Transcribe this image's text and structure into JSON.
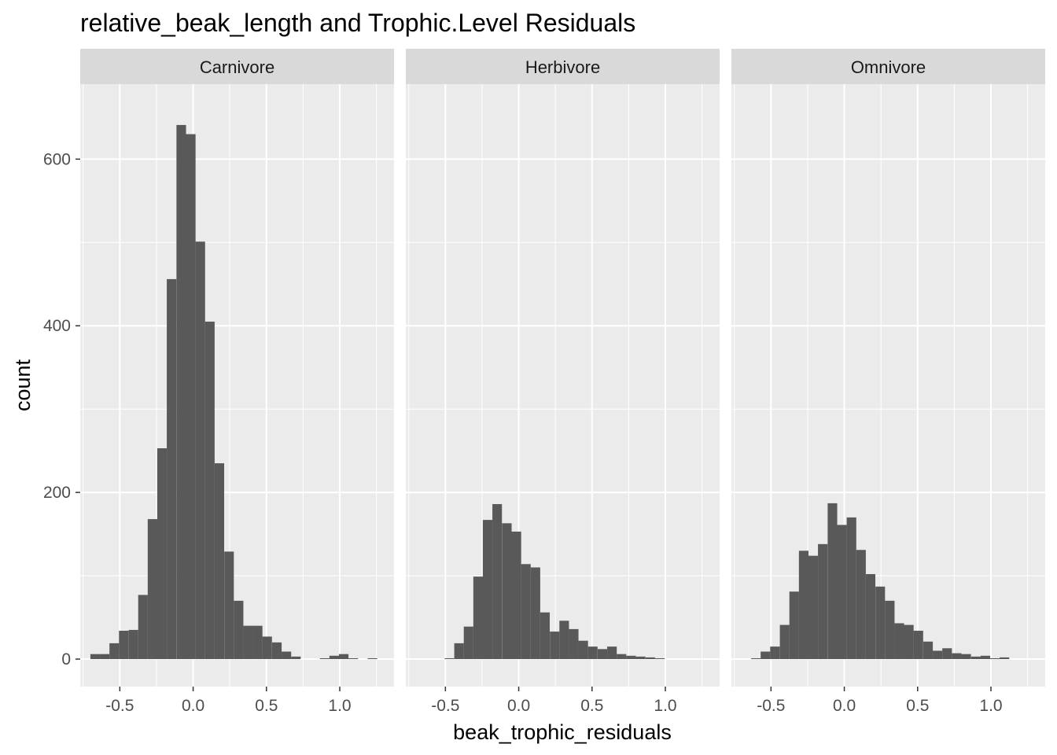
{
  "chart_data": {
    "type": "bar",
    "subtype": "faceted-histogram",
    "title": "relative_beak_length and Trophic.Level Residuals",
    "xlabel": "beak_trophic_residuals",
    "ylabel": "count",
    "xlim": [
      -0.77,
      1.37
    ],
    "ylim": [
      -33,
      690
    ],
    "x_ticks": [
      -0.5,
      0.0,
      0.5,
      1.0
    ],
    "x_tick_labels": [
      "-0.5",
      "0.0",
      "0.5",
      "1.0"
    ],
    "y_ticks": [
      0,
      200,
      400,
      600
    ],
    "y_tick_labels": [
      "0",
      "200",
      "400",
      "600"
    ],
    "bin_width": 0.0652,
    "bar_color": "#595959",
    "panel_background": "#ebebeb",
    "strip_background": "#d9d9d9",
    "grid": true,
    "legend": "none",
    "facets": [
      {
        "label": "Carnivore",
        "bins": [
          {
            "x": -0.668,
            "count": 6
          },
          {
            "x": -0.603,
            "count": 6
          },
          {
            "x": -0.538,
            "count": 19
          },
          {
            "x": -0.473,
            "count": 34
          },
          {
            "x": -0.407,
            "count": 35
          },
          {
            "x": -0.342,
            "count": 77
          },
          {
            "x": -0.277,
            "count": 168
          },
          {
            "x": -0.212,
            "count": 253
          },
          {
            "x": -0.147,
            "count": 456
          },
          {
            "x": -0.081,
            "count": 641
          },
          {
            "x": -0.016,
            "count": 630
          },
          {
            "x": 0.049,
            "count": 501
          },
          {
            "x": 0.114,
            "count": 405
          },
          {
            "x": 0.179,
            "count": 235
          },
          {
            "x": 0.245,
            "count": 129
          },
          {
            "x": 0.31,
            "count": 70
          },
          {
            "x": 0.375,
            "count": 40
          },
          {
            "x": 0.44,
            "count": 40
          },
          {
            "x": 0.505,
            "count": 27
          },
          {
            "x": 0.571,
            "count": 20
          },
          {
            "x": 0.636,
            "count": 9
          },
          {
            "x": 0.701,
            "count": 3
          },
          {
            "x": 0.766,
            "count": 0
          },
          {
            "x": 0.831,
            "count": 0
          },
          {
            "x": 0.897,
            "count": 1
          },
          {
            "x": 0.962,
            "count": 4
          },
          {
            "x": 1.027,
            "count": 6
          },
          {
            "x": 1.092,
            "count": 1
          },
          {
            "x": 1.157,
            "count": 0
          },
          {
            "x": 1.223,
            "count": 1
          }
        ]
      },
      {
        "label": "Herbivore",
        "bins": [
          {
            "x": -0.473,
            "count": 1
          },
          {
            "x": -0.407,
            "count": 19
          },
          {
            "x": -0.342,
            "count": 39
          },
          {
            "x": -0.277,
            "count": 99
          },
          {
            "x": -0.212,
            "count": 167
          },
          {
            "x": -0.147,
            "count": 186
          },
          {
            "x": -0.081,
            "count": 163
          },
          {
            "x": -0.016,
            "count": 153
          },
          {
            "x": 0.049,
            "count": 114
          },
          {
            "x": 0.114,
            "count": 110
          },
          {
            "x": 0.179,
            "count": 56
          },
          {
            "x": 0.245,
            "count": 33
          },
          {
            "x": 0.31,
            "count": 46
          },
          {
            "x": 0.375,
            "count": 36
          },
          {
            "x": 0.44,
            "count": 22
          },
          {
            "x": 0.505,
            "count": 15
          },
          {
            "x": 0.571,
            "count": 12
          },
          {
            "x": 0.636,
            "count": 15
          },
          {
            "x": 0.701,
            "count": 6
          },
          {
            "x": 0.766,
            "count": 4
          },
          {
            "x": 0.831,
            "count": 3
          },
          {
            "x": 0.897,
            "count": 2
          },
          {
            "x": 0.962,
            "count": 1
          }
        ]
      },
      {
        "label": "Omnivore",
        "bins": [
          {
            "x": -0.603,
            "count": 1
          },
          {
            "x": -0.538,
            "count": 9
          },
          {
            "x": -0.473,
            "count": 15
          },
          {
            "x": -0.407,
            "count": 41
          },
          {
            "x": -0.342,
            "count": 81
          },
          {
            "x": -0.277,
            "count": 130
          },
          {
            "x": -0.212,
            "count": 124
          },
          {
            "x": -0.147,
            "count": 138
          },
          {
            "x": -0.081,
            "count": 187
          },
          {
            "x": -0.016,
            "count": 161
          },
          {
            "x": 0.049,
            "count": 170
          },
          {
            "x": 0.114,
            "count": 131
          },
          {
            "x": 0.179,
            "count": 102
          },
          {
            "x": 0.245,
            "count": 87
          },
          {
            "x": 0.31,
            "count": 70
          },
          {
            "x": 0.375,
            "count": 43
          },
          {
            "x": 0.44,
            "count": 41
          },
          {
            "x": 0.505,
            "count": 34
          },
          {
            "x": 0.571,
            "count": 21
          },
          {
            "x": 0.636,
            "count": 10
          },
          {
            "x": 0.701,
            "count": 13
          },
          {
            "x": 0.766,
            "count": 7
          },
          {
            "x": 0.831,
            "count": 6
          },
          {
            "x": 0.897,
            "count": 3
          },
          {
            "x": 0.962,
            "count": 4
          },
          {
            "x": 1.027,
            "count": 1
          },
          {
            "x": 1.092,
            "count": 2
          },
          {
            "x": 1.157,
            "count": 0
          }
        ]
      }
    ]
  }
}
